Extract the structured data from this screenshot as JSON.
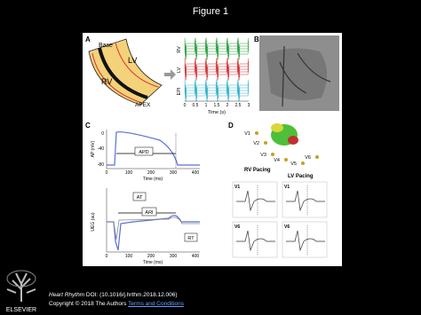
{
  "title": "Figure 1",
  "figure": {
    "panel_a": {
      "label": "A",
      "regions": [
        "Base",
        "LV",
        "RV",
        "APEX"
      ],
      "traces": [
        "RV",
        "LV",
        "EPI"
      ],
      "x_axis_label": "Time (s)",
      "x_ticks": [
        "0",
        "0.5",
        "1",
        "1.5",
        "2",
        "2.5",
        "3"
      ]
    },
    "panel_b": {
      "label": "B"
    },
    "panel_c": {
      "label": "C",
      "top_y_label": "AP (mV)",
      "top_y_ticks": [
        "0",
        "-40",
        "-80"
      ],
      "apd": "APD",
      "x_ticks": [
        "0",
        "100",
        "200",
        "300",
        "400"
      ],
      "x_axis_label": "Time (ms)",
      "bottom_y_label": "UEG (au)",
      "annotations": [
        "AT",
        "ARI",
        "RT"
      ]
    },
    "panel_d": {
      "label": "D",
      "leads": [
        "V1",
        "V2",
        "V3",
        "V4",
        "V5",
        "V6"
      ],
      "rv_pacing": "RV Pacing",
      "lv_pacing": "LV Pacing"
    }
  },
  "footer": {
    "journal": "Heart Rhythm",
    "doi": "DOI: (10.1016/j.hrthm.2018.12.006)",
    "copyright": "Copyright © 2018 The Authors",
    "link": "Terms and Conditions",
    "publisher": "ELSEVIER"
  }
}
